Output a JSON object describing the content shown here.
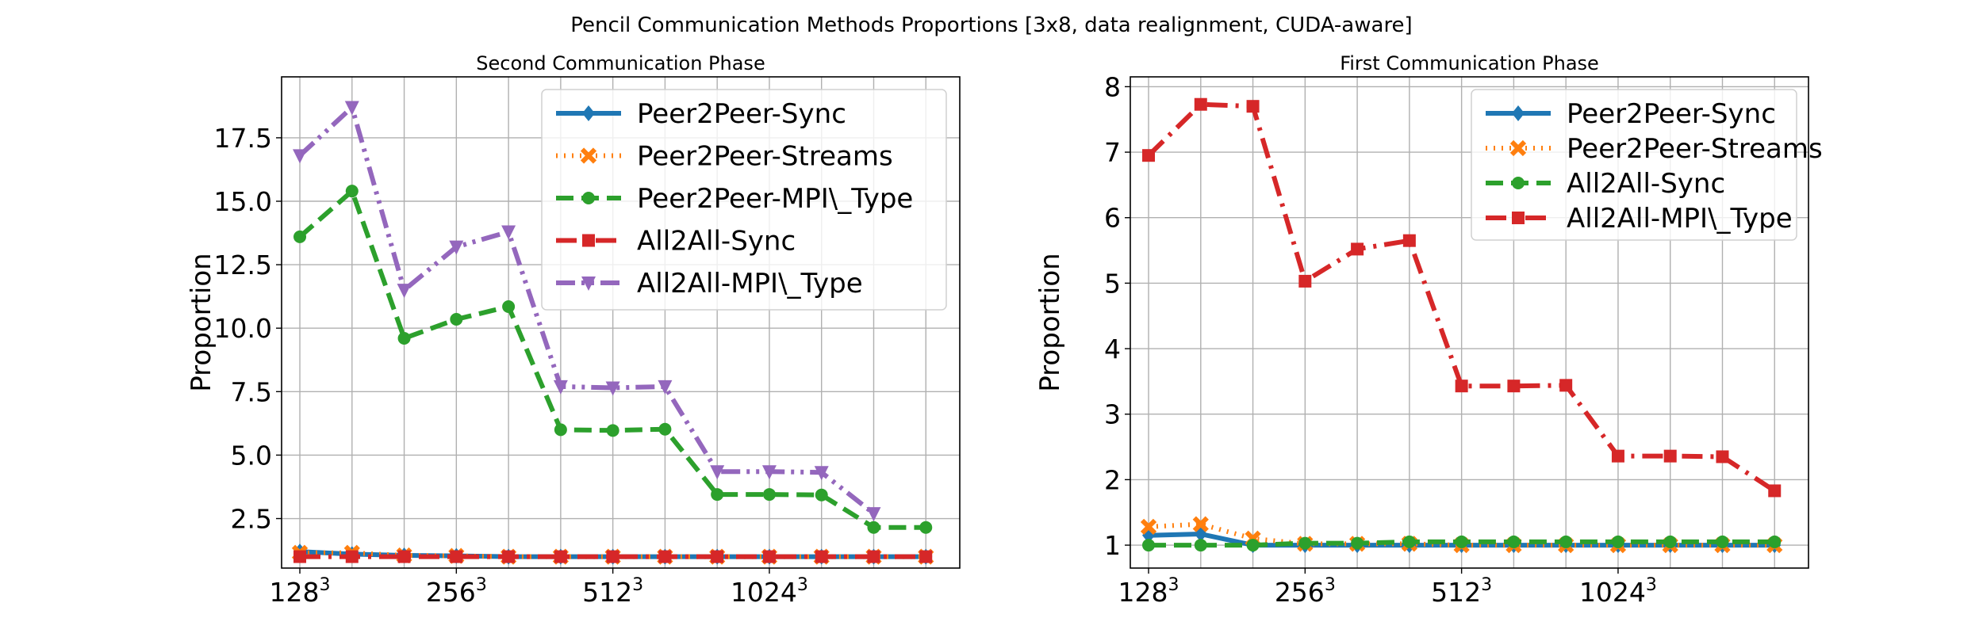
{
  "figure": {
    "title": "Pencil Communication Methods Proportions [3x8, data realignment, CUDA-aware]"
  },
  "chart_data": [
    {
      "type": "line",
      "title": "Second Communication Phase",
      "xlabel": "",
      "ylabel": "Proportion",
      "x": [
        1,
        2,
        3,
        4,
        5,
        6,
        7,
        8,
        9,
        10,
        11,
        12,
        13
      ],
      "xlim": [
        0.65,
        13.65
      ],
      "ylim": [
        0.55,
        19.9
      ],
      "xticks": [
        {
          "x": 1,
          "base": "128",
          "sup": "3"
        },
        {
          "x": 4,
          "base": "256",
          "sup": "3"
        },
        {
          "x": 7,
          "base": "512",
          "sup": "3"
        },
        {
          "x": 10,
          "base": "1024",
          "sup": "3"
        }
      ],
      "yticks": [
        {
          "v": 2.5,
          "label": "2.5"
        },
        {
          "v": 5.0,
          "label": "5.0"
        },
        {
          "v": 7.5,
          "label": "7.5"
        },
        {
          "v": 10.0,
          "label": "10.0"
        },
        {
          "v": 12.5,
          "label": "12.5"
        },
        {
          "v": 15.0,
          "label": "15.0"
        },
        {
          "v": 17.5,
          "label": "17.5"
        }
      ],
      "xgrid": [
        1,
        2,
        3,
        4,
        5,
        6,
        7,
        8,
        9,
        10,
        11,
        12,
        13
      ],
      "grid": true,
      "legend_position": "top-right",
      "series": [
        {
          "name": "Peer2Peer-Sync",
          "color": "#1f77b4",
          "dash": "solid",
          "marker": "diamond",
          "values": [
            1.2,
            1.1,
            1.05,
            1.03,
            1.0,
            1.0,
            1.0,
            1.0,
            1.0,
            1.0,
            1.0,
            1.0,
            1.0
          ]
        },
        {
          "name": "Peer2Peer-Streams",
          "color": "#ff7f0e",
          "dash": "dotted",
          "marker": "x",
          "values": [
            1.15,
            1.15,
            1.05,
            1.03,
            1.0,
            1.0,
            1.0,
            1.0,
            1.0,
            1.0,
            1.0,
            1.0,
            1.0
          ]
        },
        {
          "name": "Peer2Peer-MPI\\_Type",
          "color": "#2ca02c",
          "dash": "dashed",
          "marker": "circle",
          "values": [
            13.6,
            15.4,
            9.6,
            10.35,
            10.85,
            6.0,
            5.97,
            6.02,
            3.45,
            3.45,
            3.43,
            2.15,
            2.15
          ]
        },
        {
          "name": "All2All-Sync",
          "color": "#d62728",
          "dash": "dashdot",
          "marker": "square",
          "values": [
            1.0,
            1.0,
            1.0,
            1.0,
            1.0,
            1.0,
            1.0,
            1.0,
            1.0,
            1.0,
            1.0,
            1.0,
            1.0
          ]
        },
        {
          "name": "All2All-MPI\\_Type",
          "color": "#9467bd",
          "dash": "dashdotdot",
          "marker": "triangle-down",
          "values": [
            16.8,
            18.7,
            11.5,
            13.2,
            13.8,
            7.7,
            7.65,
            7.7,
            4.35,
            4.35,
            4.32,
            2.7,
            null
          ]
        }
      ]
    },
    {
      "type": "line",
      "title": "First Communication Phase",
      "xlabel": "",
      "ylabel": "Proportion",
      "x": [
        1,
        2,
        3,
        4,
        5,
        6,
        7,
        8,
        9,
        10,
        11,
        12,
        13
      ],
      "xlim": [
        0.65,
        13.65
      ],
      "ylim": [
        0.65,
        8.15
      ],
      "xticks": [
        {
          "x": 1,
          "base": "128",
          "sup": "3"
        },
        {
          "x": 4,
          "base": "256",
          "sup": "3"
        },
        {
          "x": 7,
          "base": "512",
          "sup": "3"
        },
        {
          "x": 10,
          "base": "1024",
          "sup": "3"
        }
      ],
      "yticks": [
        {
          "v": 1,
          "label": "1"
        },
        {
          "v": 2,
          "label": "2"
        },
        {
          "v": 3,
          "label": "3"
        },
        {
          "v": 4,
          "label": "4"
        },
        {
          "v": 5,
          "label": "5"
        },
        {
          "v": 6,
          "label": "6"
        },
        {
          "v": 7,
          "label": "7"
        },
        {
          "v": 8,
          "label": "8"
        }
      ],
      "xgrid": [
        1,
        2,
        3,
        4,
        5,
        6,
        7,
        8,
        9,
        10,
        11,
        12,
        13
      ],
      "grid": true,
      "legend_position": "top-right",
      "series": [
        {
          "name": "Peer2Peer-Sync",
          "color": "#1f77b4",
          "dash": "solid",
          "marker": "diamond",
          "values": [
            1.15,
            1.17,
            1.0,
            1.0,
            1.0,
            1.0,
            1.0,
            1.0,
            1.0,
            1.0,
            1.0,
            1.0,
            1.0
          ]
        },
        {
          "name": "Peer2Peer-Streams",
          "color": "#ff7f0e",
          "dash": "dotted",
          "marker": "x",
          "values": [
            1.28,
            1.32,
            1.1,
            1.02,
            1.02,
            1.02,
            1.0,
            1.0,
            1.0,
            1.0,
            1.0,
            1.0,
            1.0
          ]
        },
        {
          "name": "All2All-Sync",
          "color": "#2ca02c",
          "dash": "dashed",
          "marker": "circle",
          "values": [
            1.0,
            1.0,
            1.0,
            1.03,
            1.03,
            1.05,
            1.05,
            1.05,
            1.05,
            1.05,
            1.05,
            1.05,
            1.05
          ]
        },
        {
          "name": "All2All-MPI\\_Type",
          "color": "#d62728",
          "dash": "dashdot",
          "marker": "square",
          "values": [
            6.95,
            7.73,
            7.7,
            5.03,
            5.52,
            5.65,
            3.43,
            3.43,
            3.44,
            2.36,
            2.36,
            2.35,
            1.83
          ]
        }
      ]
    }
  ]
}
